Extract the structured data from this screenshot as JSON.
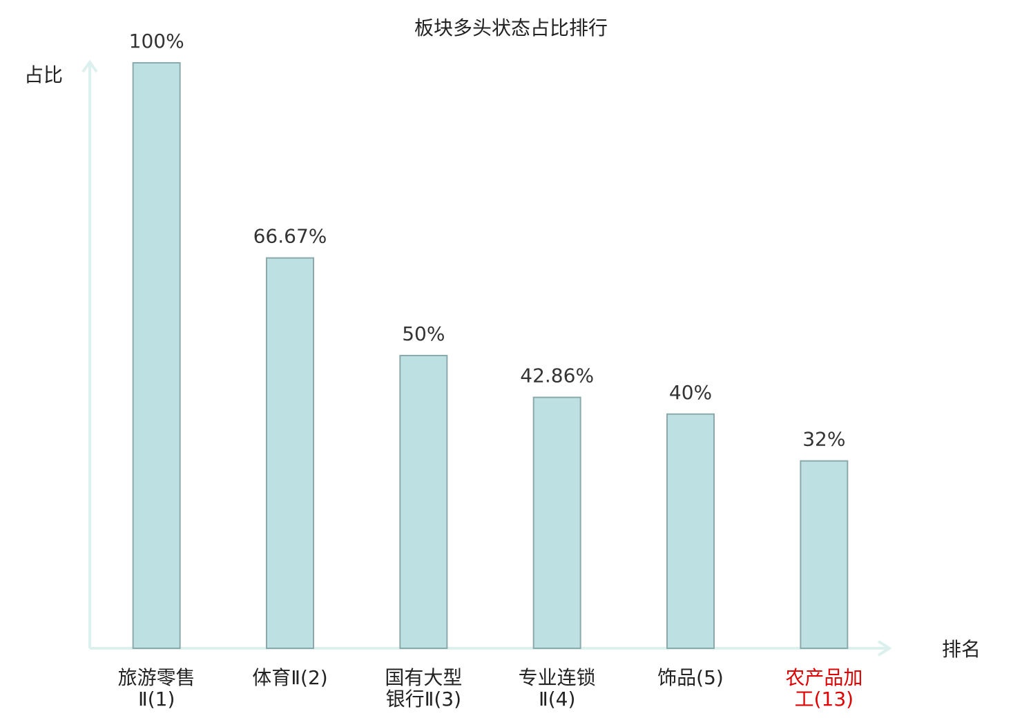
{
  "chart_data": {
    "type": "bar",
    "title": "板块多头状态占比排行",
    "y_label": "占比",
    "x_label": "排名",
    "categories": [
      "旅游零售Ⅱ(1)",
      "体育Ⅱ(2)",
      "国有大型银行Ⅱ(3)",
      "专业连锁Ⅱ(4)",
      "饰品(5)",
      "农产品加工(13)"
    ],
    "category_colors": [
      "#222222",
      "#222222",
      "#222222",
      "#222222",
      "#222222",
      "#e00000"
    ],
    "values": [
      100,
      66.67,
      50,
      42.86,
      40,
      32
    ],
    "value_labels": [
      "100%",
      "66.67%",
      "50%",
      "42.86%",
      "40%",
      "32%"
    ],
    "color": "#bde0e2",
    "ylim": [
      0,
      100
    ],
    "grid": false
  }
}
